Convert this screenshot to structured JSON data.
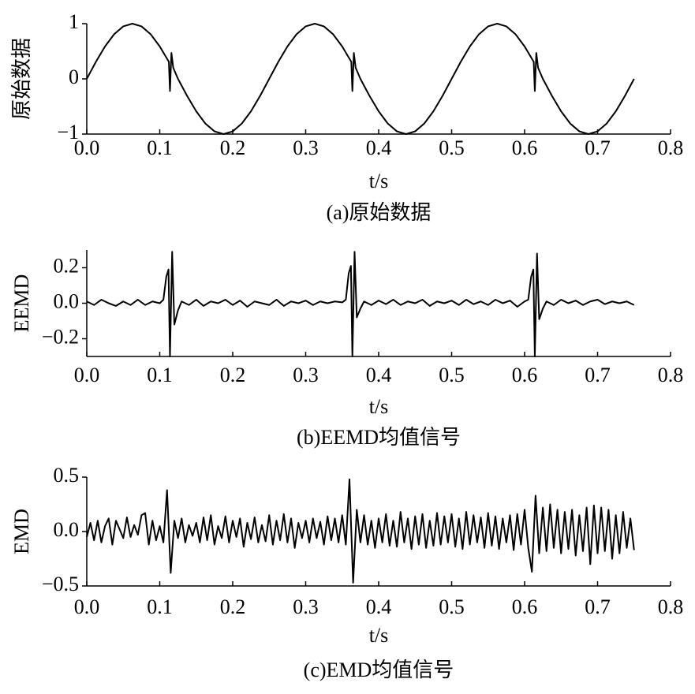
{
  "chart_data": [
    {
      "type": "line",
      "ylabel": "原始数据",
      "xlabel": "t/s",
      "caption": "(a)原始数据",
      "color": "#000000",
      "xlim": [
        0,
        0.8
      ],
      "ylim": [
        -1,
        1
      ],
      "xticks": [
        {
          "value": 0,
          "label": "0.0"
        },
        0.1,
        0.2,
        0.3,
        0.4,
        0.5,
        0.6,
        0.7,
        0.8
      ],
      "yticks": [
        {
          "value": -1,
          "label": "−1"
        },
        0,
        1
      ],
      "x": [
        0,
        0.0125,
        0.025,
        0.0375,
        0.05,
        0.0625,
        0.075,
        0.0875,
        0.1,
        0.1125,
        0.114,
        0.116,
        0.1185,
        0.125,
        0.1375,
        0.15,
        0.1625,
        0.175,
        0.1875,
        0.2,
        0.2125,
        0.225,
        0.2375,
        0.25,
        0.2625,
        0.275,
        0.2875,
        0.3,
        0.3125,
        0.325,
        0.3375,
        0.35,
        0.3625,
        0.364,
        0.366,
        0.3685,
        0.375,
        0.3875,
        0.4,
        0.4125,
        0.425,
        0.4375,
        0.45,
        0.4625,
        0.475,
        0.4875,
        0.5,
        0.5125,
        0.525,
        0.5375,
        0.55,
        0.5625,
        0.575,
        0.5875,
        0.6,
        0.6125,
        0.614,
        0.616,
        0.6185,
        0.625,
        0.6375,
        0.65,
        0.6625,
        0.675,
        0.6875,
        0.7,
        0.7125,
        0.725,
        0.7375,
        0.75
      ],
      "values": [
        0,
        0.309,
        0.588,
        0.809,
        0.951,
        1,
        0.951,
        0.809,
        0.588,
        0.309,
        -0.22,
        0.47,
        0.2,
        0,
        -0.309,
        -0.588,
        -0.809,
        -0.951,
        -1,
        -0.951,
        -0.809,
        -0.588,
        -0.309,
        0,
        0.309,
        0.588,
        0.809,
        0.951,
        1,
        0.951,
        0.809,
        0.588,
        0.309,
        -0.22,
        0.47,
        0.2,
        0,
        -0.309,
        -0.588,
        -0.809,
        -0.951,
        -1,
        -0.951,
        -0.809,
        -0.588,
        -0.309,
        0,
        0.309,
        0.588,
        0.809,
        0.951,
        1,
        0.951,
        0.809,
        0.588,
        0.309,
        -0.22,
        0.47,
        0.2,
        0,
        -0.309,
        -0.588,
        -0.809,
        -0.951,
        -1,
        -0.951,
        -0.809,
        -0.588,
        -0.309,
        0
      ]
    },
    {
      "type": "line",
      "ylabel": "EEMD",
      "xlabel": "t/s",
      "caption": "(b)EEMD均值信号",
      "color": "#000000",
      "xlim": [
        0,
        0.8
      ],
      "ylim": [
        -0.3,
        0.3
      ],
      "xticks": [
        {
          "value": 0,
          "label": "0.0"
        },
        0.1,
        0.2,
        0.3,
        0.4,
        0.5,
        0.6,
        0.7,
        0.8
      ],
      "yticks": [
        {
          "value": -0.2,
          "label": "−0.2"
        },
        {
          "value": 0,
          "label": "0.0"
        },
        0.2
      ],
      "x": [
        0,
        0.01,
        0.02,
        0.03,
        0.04,
        0.05,
        0.06,
        0.07,
        0.08,
        0.09,
        0.1,
        0.105,
        0.109,
        0.112,
        0.114,
        0.117,
        0.12,
        0.125,
        0.13,
        0.14,
        0.15,
        0.16,
        0.17,
        0.18,
        0.19,
        0.2,
        0.21,
        0.22,
        0.23,
        0.24,
        0.25,
        0.26,
        0.27,
        0.28,
        0.29,
        0.3,
        0.31,
        0.32,
        0.33,
        0.34,
        0.35,
        0.355,
        0.359,
        0.362,
        0.364,
        0.367,
        0.37,
        0.375,
        0.38,
        0.39,
        0.4,
        0.41,
        0.42,
        0.43,
        0.44,
        0.45,
        0.46,
        0.47,
        0.48,
        0.49,
        0.5,
        0.51,
        0.52,
        0.53,
        0.54,
        0.55,
        0.56,
        0.57,
        0.58,
        0.59,
        0.6,
        0.605,
        0.609,
        0.612,
        0.614,
        0.617,
        0.62,
        0.625,
        0.63,
        0.64,
        0.65,
        0.66,
        0.67,
        0.68,
        0.69,
        0.7,
        0.71,
        0.72,
        0.73,
        0.74,
        0.75
      ],
      "values": [
        0.01,
        -0.01,
        0.02,
        0,
        -0.015,
        0.01,
        -0.01,
        0.02,
        -0.01,
        0.01,
        0,
        0.02,
        0.15,
        0.19,
        -0.3,
        0.29,
        -0.12,
        -0.04,
        0.01,
        -0.01,
        0.02,
        -0.015,
        0.01,
        0,
        0.02,
        -0.01,
        0.015,
        -0.02,
        0.01,
        0,
        -0.01,
        0.02,
        -0.015,
        0.01,
        0,
        0.015,
        -0.01,
        0.01,
        0,
        0.01,
        0.005,
        0.02,
        0.17,
        0.21,
        -0.3,
        0.29,
        -0.08,
        -0.03,
        0.01,
        -0.01,
        0.015,
        -0.005,
        0.02,
        -0.01,
        0.01,
        0,
        0.02,
        -0.015,
        0.01,
        0,
        0.015,
        -0.01,
        0.02,
        -0.005,
        0.01,
        -0.01,
        0.02,
        0,
        0.015,
        -0.02,
        0.01,
        0.02,
        0.15,
        0.19,
        -0.3,
        0.28,
        -0.09,
        -0.03,
        0.01,
        -0.01,
        0.02,
        0,
        0.015,
        -0.01,
        0.01,
        0.02,
        -0.005,
        0.01,
        0,
        0.01,
        -0.01
      ]
    },
    {
      "type": "line",
      "ylabel": "EMD",
      "xlabel": "t/s",
      "caption": "(c)EMD均值信号",
      "color": "#000000",
      "xlim": [
        0,
        0.8
      ],
      "ylim": [
        -0.5,
        0.5
      ],
      "xticks": [
        {
          "value": 0,
          "label": "0.0"
        },
        0.1,
        0.2,
        0.3,
        0.4,
        0.5,
        0.6,
        0.7,
        0.8
      ],
      "yticks": [
        {
          "value": -0.5,
          "label": "−0.5"
        },
        {
          "value": 0,
          "label": "0.0"
        },
        0.5
      ],
      "x": [
        0,
        0.005,
        0.01,
        0.015,
        0.02,
        0.025,
        0.03,
        0.035,
        0.04,
        0.045,
        0.05,
        0.055,
        0.06,
        0.065,
        0.07,
        0.075,
        0.08,
        0.085,
        0.09,
        0.095,
        0.1,
        0.105,
        0.11,
        0.115,
        0.12,
        0.125,
        0.13,
        0.135,
        0.14,
        0.145,
        0.15,
        0.155,
        0.16,
        0.165,
        0.17,
        0.175,
        0.18,
        0.185,
        0.19,
        0.195,
        0.2,
        0.205,
        0.21,
        0.215,
        0.22,
        0.225,
        0.23,
        0.235,
        0.24,
        0.245,
        0.25,
        0.255,
        0.26,
        0.265,
        0.27,
        0.275,
        0.28,
        0.285,
        0.29,
        0.295,
        0.3,
        0.305,
        0.31,
        0.315,
        0.32,
        0.325,
        0.33,
        0.335,
        0.34,
        0.345,
        0.35,
        0.355,
        0.36,
        0.365,
        0.37,
        0.375,
        0.38,
        0.385,
        0.39,
        0.395,
        0.4,
        0.405,
        0.41,
        0.415,
        0.42,
        0.425,
        0.43,
        0.435,
        0.44,
        0.445,
        0.45,
        0.455,
        0.46,
        0.465,
        0.47,
        0.475,
        0.48,
        0.485,
        0.49,
        0.495,
        0.5,
        0.505,
        0.51,
        0.515,
        0.52,
        0.525,
        0.53,
        0.535,
        0.54,
        0.545,
        0.55,
        0.555,
        0.56,
        0.565,
        0.57,
        0.575,
        0.58,
        0.585,
        0.59,
        0.595,
        0.6,
        0.605,
        0.61,
        0.615,
        0.62,
        0.625,
        0.63,
        0.635,
        0.64,
        0.645,
        0.65,
        0.655,
        0.66,
        0.665,
        0.67,
        0.675,
        0.68,
        0.685,
        0.69,
        0.695,
        0.7,
        0.705,
        0.71,
        0.715,
        0.72,
        0.725,
        0.73,
        0.735,
        0.74,
        0.745,
        0.75
      ],
      "values": [
        -0.05,
        0.08,
        -0.08,
        0.1,
        -0.1,
        0.05,
        0.12,
        -0.12,
        0.1,
        0.02,
        -0.06,
        0.13,
        -0.05,
        0.06,
        -0.03,
        0.15,
        0.17,
        -0.12,
        0.1,
        -0.08,
        0.05,
        -0.1,
        0.38,
        -0.38,
        0.1,
        -0.06,
        0.12,
        -0.1,
        0.06,
        -0.04,
        0.08,
        -0.1,
        0.13,
        -0.08,
        0.15,
        -0.12,
        0.05,
        -0.06,
        0.14,
        -0.1,
        0.1,
        -0.05,
        0.12,
        -0.14,
        0.08,
        -0.07,
        0.13,
        -0.1,
        0.06,
        -0.09,
        0.15,
        -0.12,
        0.1,
        -0.08,
        0.16,
        -0.1,
        0.12,
        -0.15,
        0.08,
        -0.06,
        0.1,
        -0.1,
        0.12,
        -0.06,
        0.09,
        -0.12,
        0.14,
        -0.08,
        0.12,
        -0.1,
        0.15,
        -0.12,
        0.48,
        -0.47,
        0.2,
        -0.1,
        0.15,
        -0.12,
        0.1,
        -0.15,
        0.12,
        -0.1,
        0.16,
        -0.13,
        0.1,
        -0.14,
        0.18,
        -0.1,
        0.12,
        -0.16,
        0.14,
        -0.12,
        0.16,
        -0.15,
        0.1,
        -0.13,
        0.17,
        -0.12,
        0.14,
        -0.1,
        0.16,
        -0.14,
        0.12,
        -0.16,
        0.18,
        -0.12,
        0.15,
        -0.1,
        0.13,
        -0.15,
        0.17,
        -0.13,
        0.14,
        -0.16,
        0.12,
        -0.1,
        0.15,
        -0.17,
        0.16,
        -0.12,
        0.2,
        -0.15,
        -0.37,
        0.33,
        -0.2,
        0.22,
        -0.18,
        0.25,
        -0.15,
        0.2,
        -0.2,
        0.18,
        -0.16,
        0.2,
        -0.22,
        0.15,
        -0.18,
        0.22,
        -0.3,
        0.24,
        -0.2,
        0.22,
        -0.18,
        0.2,
        -0.25,
        0.15,
        -0.2,
        0.18,
        -0.15,
        0.12,
        -0.17
      ]
    }
  ]
}
